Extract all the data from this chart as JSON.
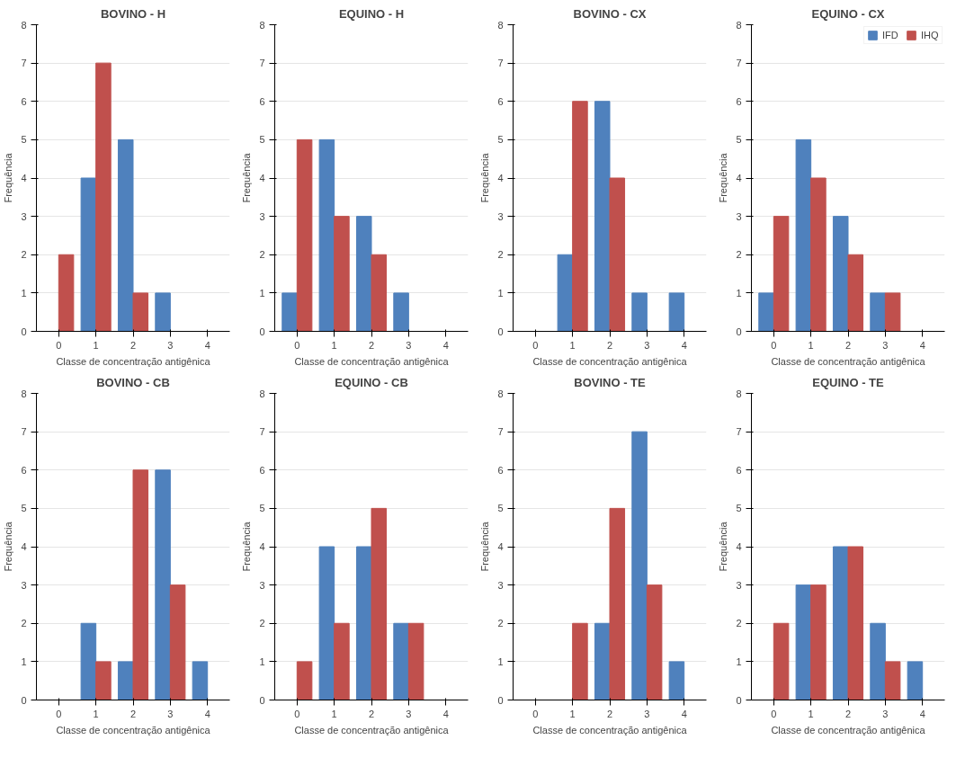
{
  "chart_data": [
    {
      "type": "bar",
      "title": "BOVINO - H",
      "categories": [
        "0",
        "1",
        "2",
        "3",
        "4"
      ],
      "xlabel": "Classe de concentração antigênica",
      "ylabel": "Frequência",
      "ylim": [
        0,
        8
      ],
      "yticks": [
        0,
        1,
        2,
        3,
        4,
        5,
        6,
        7,
        8
      ],
      "grid": "y",
      "series": [
        {
          "color": "#4f81bd",
          "values": [
            0,
            4,
            5,
            1,
            0
          ]
        },
        {
          "color": "#c0504d",
          "values": [
            2,
            7,
            1,
            0,
            0
          ]
        }
      ]
    },
    {
      "type": "bar",
      "title": "EQUINO - H",
      "categories": [
        "0",
        "1",
        "2",
        "3",
        "4"
      ],
      "xlabel": "Classe de concentração antigênica",
      "ylabel": "Frequência",
      "ylim": [
        0,
        8
      ],
      "yticks": [
        0,
        1,
        2,
        3,
        4,
        5,
        6,
        7,
        8
      ],
      "grid": "y",
      "series": [
        {
          "color": "#4f81bd",
          "values": [
            1,
            5,
            3,
            1,
            0
          ]
        },
        {
          "color": "#c0504d",
          "values": [
            5,
            3,
            2,
            0,
            0
          ]
        }
      ]
    },
    {
      "type": "bar",
      "title": "BOVINO - CX",
      "categories": [
        "0",
        "1",
        "2",
        "3",
        "4"
      ],
      "xlabel": "Classe de concentração antigênica",
      "ylabel": "Frequência",
      "ylim": [
        0,
        8
      ],
      "yticks": [
        0,
        1,
        2,
        3,
        4,
        5,
        6,
        7,
        8
      ],
      "grid": "y",
      "series": [
        {
          "color": "#4f81bd",
          "values": [
            0,
            2,
            6,
            1,
            1
          ]
        },
        {
          "color": "#c0504d",
          "values": [
            0,
            6,
            4,
            0,
            0
          ]
        }
      ]
    },
    {
      "type": "bar",
      "title": "EQUINO - CX",
      "categories": [
        "0",
        "1",
        "2",
        "3",
        "4"
      ],
      "xlabel": "Classe de concentração antigênica",
      "ylabel": "Frequência",
      "ylim": [
        0,
        8
      ],
      "yticks": [
        0,
        1,
        2,
        3,
        4,
        5,
        6,
        7,
        8
      ],
      "grid": "y",
      "legend": "top right",
      "series": [
        {
          "name": "IFD",
          "color": "#4f81bd",
          "values": [
            1,
            5,
            3,
            1,
            0
          ]
        },
        {
          "name": "IHQ",
          "color": "#c0504d",
          "values": [
            3,
            4,
            2,
            1,
            0
          ]
        }
      ]
    },
    {
      "type": "bar",
      "title": "BOVINO - CB",
      "categories": [
        "0",
        "1",
        "2",
        "3",
        "4"
      ],
      "xlabel": "Classe de concentração antigênica",
      "ylabel": "Frequência",
      "ylim": [
        0,
        8
      ],
      "yticks": [
        0,
        1,
        2,
        3,
        4,
        5,
        6,
        7,
        8
      ],
      "grid": "y",
      "series": [
        {
          "color": "#4f81bd",
          "values": [
            0,
            2,
            1,
            6,
            1
          ]
        },
        {
          "color": "#c0504d",
          "values": [
            0,
            1,
            6,
            3,
            0
          ]
        }
      ]
    },
    {
      "type": "bar",
      "title": "EQUINO - CB",
      "categories": [
        "0",
        "1",
        "2",
        "3",
        "4"
      ],
      "xlabel": "Classe de concentração antigênica",
      "ylabel": "Frequência",
      "ylim": [
        0,
        8
      ],
      "yticks": [
        0,
        1,
        2,
        3,
        4,
        5,
        6,
        7,
        8
      ],
      "grid": "y",
      "series": [
        {
          "color": "#4f81bd",
          "values": [
            0,
            4,
            4,
            2,
            0
          ]
        },
        {
          "color": "#c0504d",
          "values": [
            1,
            2,
            5,
            2,
            0
          ]
        }
      ]
    },
    {
      "type": "bar",
      "title": "BOVINO - TE",
      "categories": [
        "0",
        "1",
        "2",
        "3",
        "4"
      ],
      "xlabel": "Classe de concentração antigênica",
      "ylabel": "Frequência",
      "ylim": [
        0,
        8
      ],
      "yticks": [
        0,
        1,
        2,
        3,
        4,
        5,
        6,
        7,
        8
      ],
      "grid": "y",
      "series": [
        {
          "color": "#4f81bd",
          "values": [
            0,
            0,
            2,
            7,
            1
          ]
        },
        {
          "color": "#c0504d",
          "values": [
            0,
            2,
            5,
            3,
            0
          ]
        }
      ]
    },
    {
      "type": "bar",
      "title": "EQUINO - TE",
      "categories": [
        "0",
        "1",
        "2",
        "3",
        "4"
      ],
      "xlabel": "Classe de concentração antigênica",
      "ylabel": "Frequência",
      "ylim": [
        0,
        8
      ],
      "yticks": [
        0,
        1,
        2,
        3,
        4,
        5,
        6,
        7,
        8
      ],
      "grid": "y",
      "series": [
        {
          "color": "#4f81bd",
          "values": [
            0,
            3,
            4,
            2,
            1
          ]
        },
        {
          "color": "#c0504d",
          "values": [
            2,
            3,
            4,
            1,
            0
          ]
        }
      ]
    }
  ]
}
